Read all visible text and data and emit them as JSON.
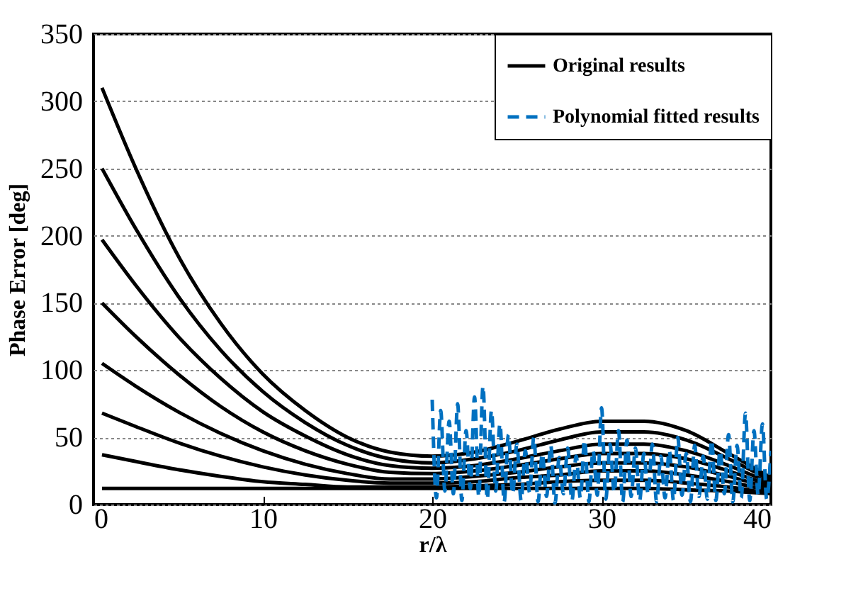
{
  "chart_data": {
    "type": "line",
    "xlabel": "r/λ",
    "ylabel": "Phase Error [deg]",
    "xlim": [
      0,
      40
    ],
    "xticks": [
      0,
      10,
      20,
      30,
      40
    ],
    "ylim": [
      0,
      350
    ],
    "yticks": [
      0,
      50,
      100,
      150,
      200,
      250,
      300,
      350
    ],
    "grid": "y",
    "legend": "top right",
    "marker": "none",
    "series": [
      {
        "name": "Original results",
        "color": "#000000",
        "line_style": "solid",
        "x": [
          0.5,
          2.5,
          5,
          7.5,
          10,
          12.5,
          15,
          17.5,
          20,
          22.5,
          25,
          27.5,
          30,
          32.5,
          35,
          37.5,
          40
        ],
        "values": [
          310,
          250,
          185,
          135,
          97,
          70,
          50,
          39,
          36,
          39,
          47,
          56,
          62,
          62,
          55,
          38,
          20
        ]
      },
      {
        "color": "#000000",
        "line_style": "solid",
        "x": [
          0.5,
          2.5,
          5,
          7.5,
          10,
          12.5,
          15,
          17.5,
          20,
          22.5,
          25,
          27.5,
          30,
          32.5,
          35,
          37.5,
          40
        ],
        "values": [
          250,
          205,
          155,
          115,
          84,
          61,
          44,
          34,
          31,
          34,
          40,
          48,
          54,
          54,
          48,
          34,
          18
        ]
      },
      {
        "color": "#000000",
        "line_style": "solid",
        "x": [
          0.5,
          2.5,
          5,
          7.5,
          10,
          12.5,
          15,
          17.5,
          20,
          22.5,
          25,
          27.5,
          30,
          32.5,
          35,
          37.5,
          40
        ],
        "values": [
          197,
          163,
          125,
          94,
          69,
          51,
          37,
          29,
          27,
          29,
          34,
          40,
          45,
          45,
          40,
          29,
          16
        ]
      },
      {
        "color": "#000000",
        "line_style": "solid",
        "x": [
          0.5,
          2.5,
          5,
          7.5,
          10,
          12.5,
          15,
          17.5,
          20,
          22.5,
          25,
          27.5,
          30,
          32.5,
          35,
          37.5,
          40
        ],
        "values": [
          150,
          125,
          97,
          73,
          54,
          40,
          30,
          24,
          23,
          25,
          29,
          34,
          38,
          38,
          34,
          25,
          14
        ]
      },
      {
        "color": "#000000",
        "line_style": "solid",
        "x": [
          0.5,
          2.5,
          5,
          7.5,
          10,
          12.5,
          15,
          17.5,
          20,
          22.5,
          25,
          27.5,
          30,
          32.5,
          35,
          37.5,
          40
        ],
        "values": [
          105,
          88,
          69,
          53,
          40,
          30,
          23,
          19,
          19,
          21,
          24,
          28,
          31,
          31,
          28,
          21,
          12
        ]
      },
      {
        "color": "#000000",
        "line_style": "solid",
        "x": [
          0.5,
          2.5,
          5,
          7.5,
          10,
          12.5,
          15,
          17.5,
          20,
          22.5,
          25,
          27.5,
          30,
          32.5,
          35,
          37.5,
          40
        ],
        "values": [
          68,
          58,
          46,
          36,
          28,
          22,
          18,
          16,
          16,
          17,
          20,
          22,
          25,
          25,
          22,
          17,
          10
        ]
      },
      {
        "color": "#000000",
        "line_style": "solid",
        "x": [
          0.5,
          2.5,
          5,
          7.5,
          10,
          12.5,
          15,
          17.5,
          20,
          22.5,
          25,
          27.5,
          30,
          32.5,
          35,
          37.5,
          40
        ],
        "values": [
          37,
          32,
          26,
          21,
          17,
          15,
          13,
          13,
          13,
          14,
          15,
          17,
          18,
          18,
          16,
          13,
          8
        ]
      },
      {
        "color": "#000000",
        "line_style": "solid",
        "x": [
          0.5,
          2.5,
          5,
          7.5,
          10,
          12.5,
          15,
          17.5,
          20,
          22.5,
          25,
          27.5,
          30,
          32.5,
          35,
          37.5,
          40
        ],
        "values": [
          12,
          12,
          12,
          12,
          12,
          12,
          12,
          12,
          12,
          12,
          12,
          12,
          12,
          12,
          11,
          10,
          8
        ]
      },
      {
        "name": "Polynomial fitted results",
        "color": "#0070c0",
        "line_style": "dashed",
        "x": [
          20,
          20.25,
          20.5,
          20.75,
          21,
          21.25,
          21.5,
          21.75,
          22,
          22.25,
          22.5,
          22.75,
          23,
          23.25,
          23.5,
          23.75,
          24,
          24.25,
          24.5,
          24.75,
          25,
          25.25,
          25.5,
          25.75,
          26,
          26.25,
          26.5,
          26.75,
          27,
          27.25,
          27.5,
          27.75,
          28,
          28.25,
          28.5,
          28.75,
          29,
          29.25,
          29.5,
          29.75,
          30,
          30.25,
          30.5,
          30.75,
          31,
          31.25,
          31.5,
          31.75,
          32,
          32.25,
          32.5,
          32.75,
          33,
          33.25,
          33.5,
          33.75,
          34,
          34.25,
          34.5,
          34.75,
          35,
          35.25,
          35.5,
          35.75,
          36,
          36.25,
          36.5,
          36.75,
          37,
          37.25,
          37.5,
          37.75,
          38,
          38.25,
          38.5,
          38.75,
          39,
          39.25,
          39.5,
          39.75,
          40
        ],
        "values": [
          78,
          5,
          70,
          10,
          62,
          8,
          75,
          3,
          55,
          12,
          80,
          6,
          88,
          4,
          70,
          10,
          60,
          2,
          52,
          8,
          45,
          3,
          40,
          9,
          50,
          2,
          38,
          6,
          44,
          1,
          35,
          8,
          42,
          3,
          36,
          5,
          48,
          2,
          40,
          7,
          72,
          4,
          45,
          9,
          55,
          2,
          48,
          6,
          42,
          3,
          38,
          8,
          45,
          2,
          36,
          5,
          40,
          3,
          50,
          7,
          38,
          2,
          44,
          6,
          36,
          4,
          48,
          3,
          40,
          8,
          52,
          2,
          44,
          5,
          68,
          3,
          55,
          7,
          60,
          4,
          40
        ]
      }
    ]
  }
}
